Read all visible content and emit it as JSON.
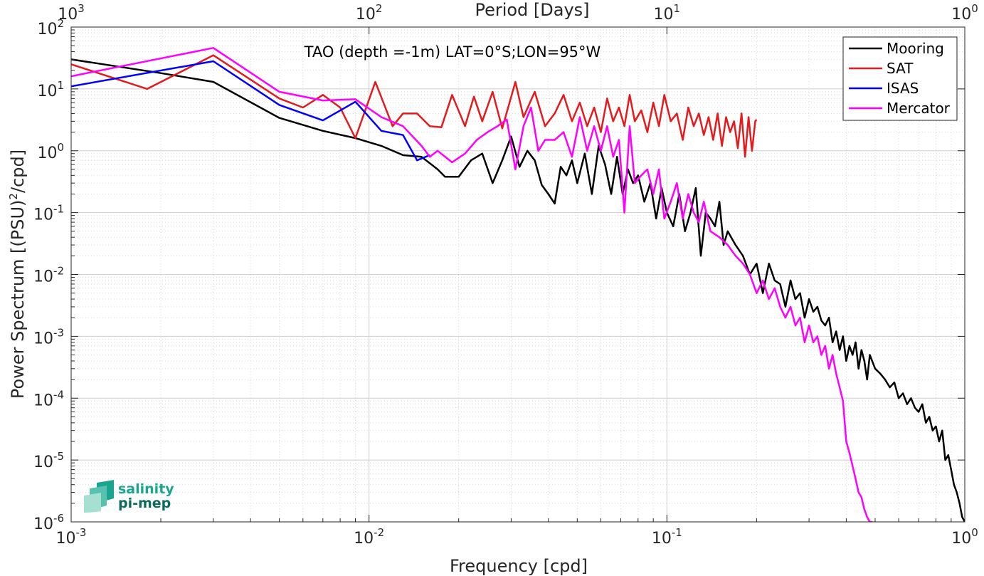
{
  "chart_data": {
    "type": "line",
    "title": "TAO (depth =-1m) LAT=0°S;LON=95°W",
    "xlabel": "Frequency [cpd]",
    "top_xlabel": "Period [Days]",
    "ylabel": "Power Spectrum [(PSU)²/cpd]",
    "xscale": "log",
    "yscale": "log",
    "xlim": [
      0.001,
      1
    ],
    "ylim": [
      1e-06,
      100
    ],
    "grid": true,
    "legend_position": "top-right",
    "x_ticks": [
      {
        "value": 0.001,
        "base": "10",
        "exp": "-3"
      },
      {
        "value": 0.01,
        "base": "10",
        "exp": "-2"
      },
      {
        "value": 0.1,
        "base": "10",
        "exp": "-1"
      },
      {
        "value": 1,
        "base": "10",
        "exp": "0"
      }
    ],
    "top_ticks": [
      {
        "value": 0.001,
        "base": "10",
        "exp": "3"
      },
      {
        "value": 0.01,
        "base": "10",
        "exp": "2"
      },
      {
        "value": 0.1,
        "base": "10",
        "exp": "1"
      },
      {
        "value": 1,
        "base": "10",
        "exp": "0"
      }
    ],
    "y_ticks": [
      {
        "value": 100,
        "base": "10",
        "exp": "2"
      },
      {
        "value": 10,
        "base": "10",
        "exp": "1"
      },
      {
        "value": 1,
        "base": "10",
        "exp": "0"
      },
      {
        "value": 0.1,
        "base": "10",
        "exp": "-1"
      },
      {
        "value": 0.01,
        "base": "10",
        "exp": "-2"
      },
      {
        "value": 0.001,
        "base": "10",
        "exp": "-3"
      },
      {
        "value": 0.0001,
        "base": "10",
        "exp": "-4"
      },
      {
        "value": 1e-05,
        "base": "10",
        "exp": "-5"
      },
      {
        "value": 1e-06,
        "base": "10",
        "exp": "-6"
      }
    ],
    "series": [
      {
        "name": "Mooring",
        "color": "#000000",
        "x": [
          0.001,
          0.002,
          0.003,
          0.005,
          0.007,
          0.009,
          0.011,
          0.013,
          0.015,
          0.017,
          0.018,
          0.02,
          0.022,
          0.024,
          0.026,
          0.028,
          0.03,
          0.032,
          0.034,
          0.036,
          0.038,
          0.04,
          0.042,
          0.044,
          0.046,
          0.048,
          0.05,
          0.053,
          0.056,
          0.059,
          0.062,
          0.065,
          0.068,
          0.071,
          0.074,
          0.077,
          0.08,
          0.084,
          0.088,
          0.092,
          0.096,
          0.1,
          0.105,
          0.11,
          0.115,
          0.12,
          0.125,
          0.13,
          0.135,
          0.14,
          0.145,
          0.15,
          0.155,
          0.16,
          0.17,
          0.18,
          0.19,
          0.2,
          0.21,
          0.22,
          0.23,
          0.24,
          0.25,
          0.26,
          0.27,
          0.28,
          0.29,
          0.3,
          0.31,
          0.32,
          0.33,
          0.34,
          0.35,
          0.36,
          0.37,
          0.38,
          0.39,
          0.4,
          0.41,
          0.42,
          0.43,
          0.44,
          0.45,
          0.46,
          0.47,
          0.48,
          0.5,
          0.52,
          0.54,
          0.56,
          0.58,
          0.6,
          0.62,
          0.64,
          0.66,
          0.68,
          0.7,
          0.72,
          0.74,
          0.76,
          0.78,
          0.8,
          0.82,
          0.84,
          0.86,
          0.88,
          0.9,
          0.92,
          0.94,
          0.96,
          0.98,
          1.0
        ],
        "y": [
          30,
          18,
          13,
          3.4,
          2.1,
          1.6,
          1.2,
          0.85,
          0.8,
          0.5,
          0.38,
          0.38,
          0.7,
          0.9,
          0.3,
          0.7,
          1.7,
          0.55,
          1.0,
          0.7,
          0.28,
          0.2,
          0.14,
          0.55,
          0.4,
          0.7,
          0.3,
          0.9,
          0.2,
          1.2,
          0.6,
          0.2,
          0.8,
          0.2,
          0.5,
          0.3,
          0.4,
          0.15,
          0.3,
          0.08,
          0.25,
          0.1,
          0.06,
          0.2,
          0.05,
          0.1,
          0.25,
          0.02,
          0.1,
          0.08,
          0.06,
          0.15,
          0.03,
          0.05,
          0.03,
          0.02,
          0.01,
          0.015,
          0.005,
          0.015,
          0.008,
          0.007,
          0.003,
          0.008,
          0.004,
          0.005,
          0.002,
          0.004,
          0.0025,
          0.003,
          0.0018,
          0.0015,
          0.002,
          0.0008,
          0.0012,
          0.0006,
          0.001,
          0.0004,
          0.0007,
          0.0005,
          0.0008,
          0.0003,
          0.0006,
          0.0004,
          0.0002,
          0.0005,
          0.0003,
          0.00025,
          0.0002,
          0.00015,
          0.00018,
          0.0001,
          0.00012,
          8e-05,
          0.0001,
          7e-05,
          6e-05,
          8e-05,
          4e-05,
          5e-05,
          3e-05,
          3.5e-05,
          2e-05,
          3e-05,
          1e-05,
          1.2e-05,
          7e-06,
          4e-06,
          3e-06,
          2e-06,
          1.2e-06,
          1e-06
        ]
      },
      {
        "name": "SAT",
        "color": "#e41a1c",
        "x": [
          0.001,
          0.0018,
          0.003,
          0.005,
          0.006,
          0.007,
          0.008,
          0.009,
          0.0105,
          0.012,
          0.013,
          0.0145,
          0.016,
          0.0175,
          0.019,
          0.021,
          0.0225,
          0.024,
          0.026,
          0.028,
          0.031,
          0.033,
          0.036,
          0.039,
          0.042,
          0.045,
          0.048,
          0.051,
          0.054,
          0.057,
          0.06,
          0.063,
          0.066,
          0.069,
          0.072,
          0.075,
          0.078,
          0.082,
          0.086,
          0.09,
          0.094,
          0.098,
          0.103,
          0.108,
          0.113,
          0.118,
          0.123,
          0.128,
          0.133,
          0.138,
          0.143,
          0.148,
          0.153,
          0.158,
          0.163,
          0.168,
          0.173,
          0.178,
          0.183,
          0.188,
          0.193,
          0.198,
          0.2
        ],
        "y": [
          25,
          10,
          35,
          7,
          5,
          8,
          5,
          1.6,
          13,
          2.5,
          4,
          4,
          2.5,
          2.4,
          8,
          2.5,
          7.5,
          3,
          9,
          2.3,
          13,
          3.5,
          9,
          2.5,
          4,
          8,
          3,
          6,
          2.5,
          5,
          2,
          7,
          3,
          5,
          2.5,
          8,
          3,
          4.5,
          2,
          6,
          2.5,
          8,
          3,
          4,
          1.5,
          5,
          2.5,
          4,
          1.8,
          3.5,
          1.5,
          4,
          1.2,
          3.5,
          2,
          3,
          1.1,
          4,
          0.8,
          3.5,
          1,
          3,
          3.2
        ]
      },
      {
        "name": "ISAS",
        "color": "#0000ff",
        "x": [
          0.001,
          0.003,
          0.005,
          0.007,
          0.009,
          0.011,
          0.013,
          0.0145,
          0.016
        ],
        "y": [
          11,
          28,
          5.5,
          3.1,
          6.2,
          2.1,
          1.8,
          0.7,
          0.85
        ]
      },
      {
        "name": "Mercator",
        "color": "#ff00ff",
        "x": [
          0.001,
          0.003,
          0.005,
          0.007,
          0.009,
          0.011,
          0.013,
          0.015,
          0.016,
          0.017,
          0.019,
          0.021,
          0.023,
          0.025,
          0.027,
          0.029,
          0.031,
          0.033,
          0.035,
          0.037,
          0.039,
          0.042,
          0.045,
          0.048,
          0.051,
          0.054,
          0.057,
          0.06,
          0.063,
          0.066,
          0.069,
          0.072,
          0.075,
          0.078,
          0.082,
          0.086,
          0.09,
          0.094,
          0.098,
          0.103,
          0.108,
          0.113,
          0.118,
          0.123,
          0.128,
          0.133,
          0.14,
          0.15,
          0.16,
          0.17,
          0.18,
          0.19,
          0.2,
          0.21,
          0.22,
          0.23,
          0.24,
          0.25,
          0.26,
          0.27,
          0.28,
          0.29,
          0.3,
          0.31,
          0.32,
          0.33,
          0.34,
          0.35,
          0.36,
          0.37,
          0.38,
          0.39,
          0.4,
          0.41,
          0.42,
          0.43,
          0.44,
          0.45,
          0.46,
          0.47,
          0.48,
          0.49
        ],
        "y": [
          16,
          46,
          9,
          6.5,
          6.8,
          3.5,
          2.5,
          1.2,
          0.8,
          1.0,
          0.65,
          0.9,
          1.5,
          2.0,
          2.5,
          3.2,
          0.5,
          2.5,
          5,
          1.0,
          1.5,
          1.5,
          2.0,
          0.8,
          3.5,
          1.0,
          2.5,
          1.0,
          2.5,
          0.8,
          1.5,
          0.1,
          2.5,
          0.3,
          0.4,
          0.5,
          0.2,
          0.5,
          0.08,
          0.15,
          0.3,
          0.08,
          0.2,
          0.1,
          0.07,
          0.15,
          0.05,
          0.04,
          0.03,
          0.02,
          0.015,
          0.01,
          0.005,
          0.008,
          0.004,
          0.006,
          0.003,
          0.002,
          0.003,
          0.0015,
          0.002,
          0.0008,
          0.0015,
          0.0008,
          0.001,
          0.0005,
          0.0007,
          0.0003,
          0.0005,
          0.00025,
          0.00015,
          9e-05,
          2e-05,
          1.3e-05,
          8e-06,
          5e-06,
          3e-06,
          2.5e-06,
          1.6e-06,
          1.2e-06,
          1e-06,
          1e-06
        ]
      }
    ]
  },
  "logo": {
    "line1": "salinity",
    "line2": "pi-mep",
    "accent_color": "#1aa58f"
  }
}
